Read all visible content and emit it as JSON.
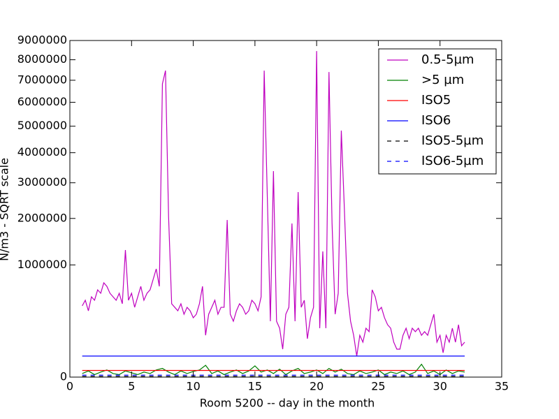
{
  "chart_data": {
    "type": "line",
    "yscale": "sqrt",
    "xlabel": "Room 5200 -- day in the month",
    "ylabel": "N/m3 - SQRT scale",
    "xlim": [
      0,
      35
    ],
    "xticks": [
      0,
      5,
      10,
      15,
      20,
      25,
      30,
      35
    ],
    "ylim": [
      0,
      9000000
    ],
    "yticks": [
      0,
      1000000,
      2000000,
      3000000,
      4000000,
      5000000,
      6000000,
      7000000,
      8000000,
      9000000
    ],
    "legend": "upper right",
    "series": [
      {
        "name": "0.5-5µm",
        "color": "#bf00bf",
        "linestyle": "solid",
        "x": [
          1,
          1.25,
          1.5,
          1.75,
          2,
          2.25,
          2.5,
          2.75,
          3,
          3.25,
          3.5,
          3.75,
          4,
          4.25,
          4.5,
          4.75,
          5,
          5.25,
          5.5,
          5.75,
          6,
          6.25,
          6.5,
          6.75,
          7,
          7.25,
          7.5,
          7.75,
          8,
          8.25,
          8.5,
          8.75,
          9,
          9.25,
          9.5,
          9.75,
          10,
          10.25,
          10.5,
          10.75,
          11,
          11.25,
          11.5,
          11.75,
          12,
          12.25,
          12.5,
          12.75,
          13,
          13.25,
          13.5,
          13.75,
          14,
          14.25,
          14.5,
          14.75,
          15,
          15.25,
          15.5,
          15.75,
          16,
          16.25,
          16.5,
          16.75,
          17,
          17.25,
          17.5,
          17.75,
          18,
          18.25,
          18.5,
          18.75,
          19,
          19.25,
          19.5,
          19.75,
          20,
          20.25,
          20.5,
          20.75,
          21,
          21.25,
          21.5,
          21.75,
          22,
          22.25,
          22.5,
          22.75,
          23,
          23.25,
          23.5,
          23.75,
          24,
          24.25,
          24.5,
          24.75,
          25,
          25.25,
          25.5,
          25.75,
          26,
          26.25,
          26.5,
          26.75,
          27,
          27.25,
          27.5,
          27.75,
          28,
          28.25,
          28.5,
          28.75,
          29,
          29.25,
          29.5,
          29.75,
          30,
          30.25,
          30.5,
          30.75,
          31,
          31.25,
          31.5,
          31.75,
          32
        ],
        "values": [
          403000,
          469000,
          349000,
          512000,
          469000,
          605000,
          558000,
          706000,
          654000,
          558000,
          512000,
          469000,
          558000,
          427000,
          1282000,
          469000,
          558000,
          387000,
          512000,
          654000,
          469000,
          558000,
          605000,
          759000,
          930000,
          654000,
          6830000,
          7460000,
          2048000,
          427000,
          387000,
          349000,
          427000,
          314000,
          387000,
          349000,
          280000,
          314000,
          427000,
          654000,
          139000,
          314000,
          387000,
          469000,
          314000,
          387000,
          387000,
          1960000,
          314000,
          248000,
          349000,
          427000,
          387000,
          314000,
          349000,
          469000,
          427000,
          349000,
          512000,
          7460000,
          2618000,
          248000,
          3370000,
          248000,
          190000,
          62000,
          314000,
          387000,
          1874000,
          248000,
          2719000,
          387000,
          469000,
          117000,
          280000,
          387000,
          8445000,
          190000,
          1254000,
          190000,
          7395000,
          1874000,
          314000,
          558000,
          4826000,
          2230000,
          558000,
          248000,
          139000,
          35000,
          139000,
          97000,
          190000,
          164000,
          605000,
          512000,
          349000,
          387000,
          280000,
          218000,
          190000,
          97000,
          62000,
          62000,
          139000,
          190000,
          117000,
          190000,
          164000,
          190000,
          139000,
          164000,
          139000,
          218000,
          314000,
          97000,
          139000,
          47000,
          139000,
          97000,
          190000,
          97000,
          218000,
          78000,
          97000
        ]
      },
      {
        "name": ">5 µm",
        "color": "#008000",
        "linestyle": "solid",
        "x": [
          1,
          1.5,
          2,
          2.5,
          3,
          3.5,
          4,
          4.5,
          5,
          5.5,
          6,
          6.5,
          7,
          7.5,
          8,
          8.5,
          9,
          9.5,
          10,
          10.5,
          11,
          11.5,
          12,
          12.5,
          13,
          13.5,
          14,
          14.5,
          15,
          15.5,
          16,
          16.5,
          17,
          17.5,
          18,
          18.5,
          19,
          19.5,
          20,
          20.5,
          21,
          21.5,
          22,
          22.5,
          23,
          23.5,
          24,
          24.5,
          25,
          25.5,
          26,
          26.5,
          27,
          27.5,
          28,
          28.5,
          29,
          29.5,
          30,
          30.5,
          31,
          31.5,
          32
        ],
        "values": [
          1000,
          3000,
          500,
          2000,
          4000,
          1000,
          500,
          3000,
          1500,
          500,
          2000,
          1000,
          4000,
          6000,
          2000,
          500,
          3000,
          1000,
          2500,
          4000,
          11000,
          1000,
          3000,
          500,
          2000,
          4000,
          1000,
          3000,
          10000,
          2000,
          4000,
          1000,
          5000,
          500,
          3000,
          6000,
          1000,
          2000,
          4000,
          1000,
          6000,
          2000,
          5000,
          1000,
          500,
          3000,
          1000,
          2000,
          4000,
          500,
          2000,
          1000,
          3000,
          500,
          2000,
          13000,
          1000,
          3000,
          500,
          4000,
          1000,
          3000,
          2000
        ]
      },
      {
        "name": "ISO5",
        "color": "#ff0000",
        "linestyle": "solid",
        "x": [
          1,
          32
        ],
        "values": [
          3520,
          3520
        ]
      },
      {
        "name": "ISO6",
        "color": "#0000ff",
        "linestyle": "solid",
        "x": [
          1,
          32
        ],
        "values": [
          35200,
          35200
        ]
      },
      {
        "name": "ISO5-5µm",
        "color": "#000000",
        "linestyle": "dashed",
        "x": [
          1,
          32
        ],
        "values": [
          29,
          29
        ]
      },
      {
        "name": "ISO6-5µm",
        "color": "#0000ff",
        "linestyle": "dashed",
        "x": [
          1,
          32
        ],
        "values": [
          293,
          293
        ]
      }
    ]
  }
}
